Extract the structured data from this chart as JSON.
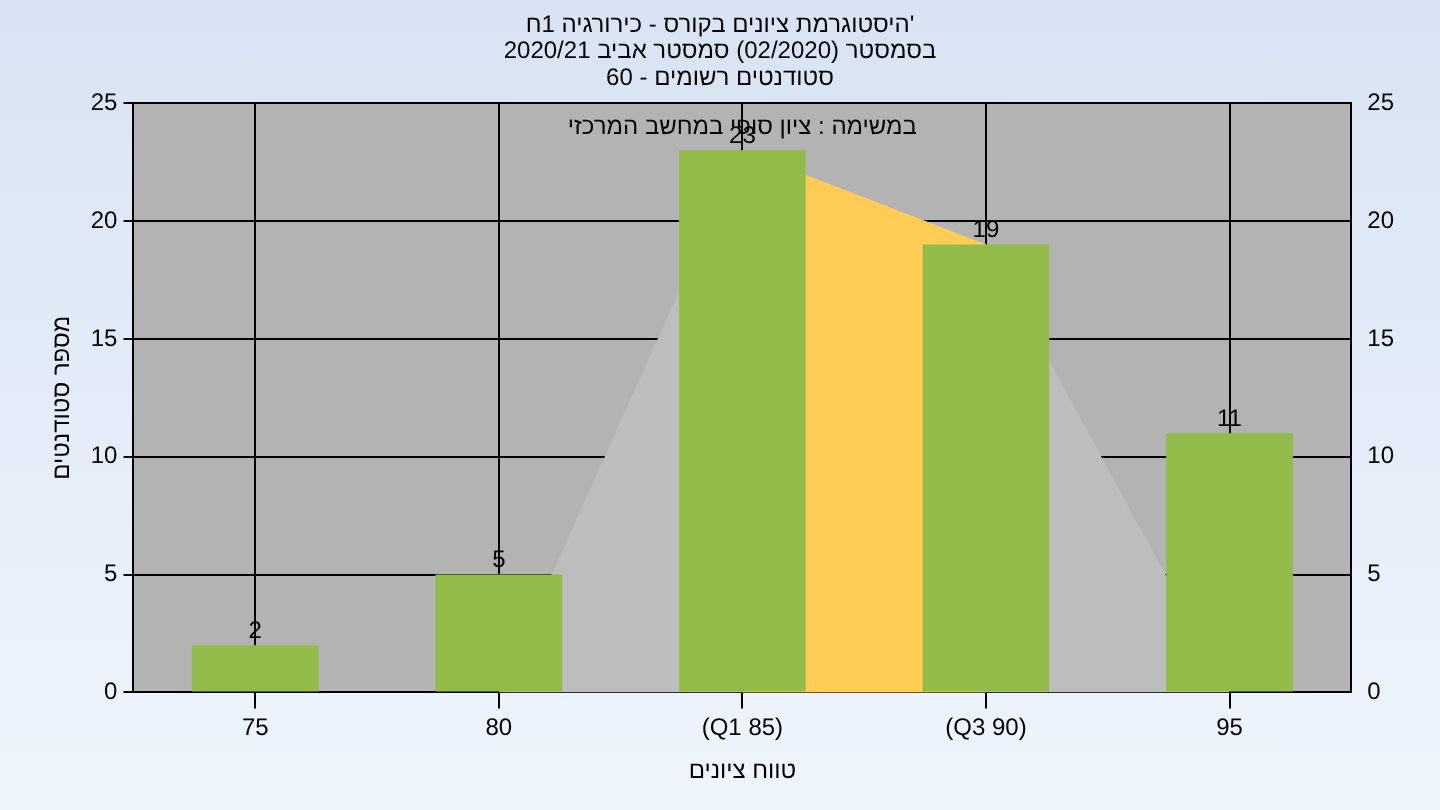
{
  "chart_data": {
    "type": "bar",
    "title": [
      "היסטוגרמת ציונים בקורס - כירורגיה 1ח'",
      "בסמסטר (02/2020) סמסטר אביב 2020/21",
      "סטודנטים רשומים - 60"
    ],
    "xlabel": "טווח ציונים",
    "ylabel": "מספר סטודנטים",
    "annotations": [
      "במשימה : ציון סופי במחשב המרכזי"
    ],
    "categories": [
      "75",
      "80",
      "(Q1 85)",
      "(Q3 90)",
      "95"
    ],
    "series": [
      {
        "type": "area",
        "color": "#bdbdbd",
        "values": [
          null,
          0,
          23,
          19,
          0
        ]
      },
      {
        "type": "area",
        "color": "#ffcc55",
        "values": [
          null,
          null,
          23,
          19,
          null
        ]
      },
      {
        "color": "#92bb4a",
        "values": [
          2,
          5,
          23,
          19,
          11
        ],
        "value_labels": [
          "2",
          "5",
          "23",
          "19",
          "11"
        ]
      }
    ],
    "ylim": [
      0,
      25
    ],
    "yticks": [
      0,
      5,
      10,
      15,
      20,
      25
    ],
    "y2lim": [
      0,
      25
    ],
    "y2ticks": [
      0,
      5,
      10,
      15,
      20,
      25
    ],
    "grid": true
  }
}
